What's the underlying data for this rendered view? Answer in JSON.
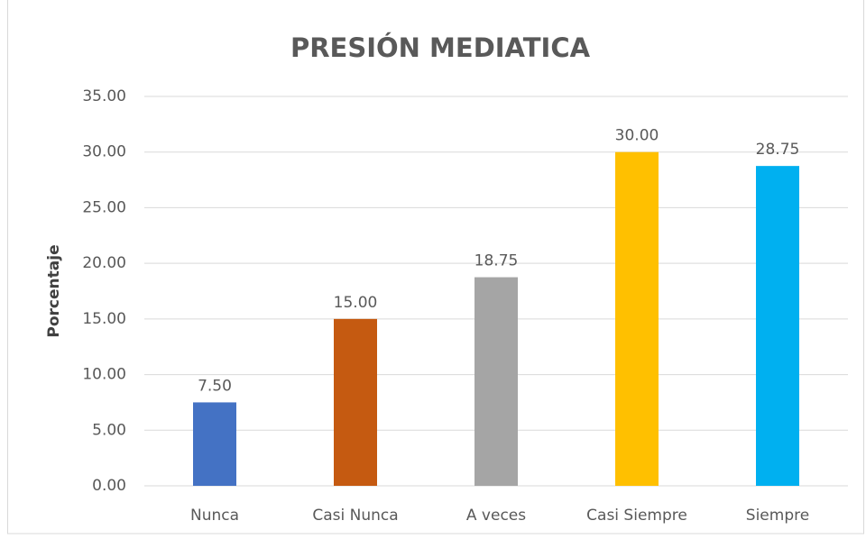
{
  "chart_data": {
    "type": "bar",
    "title": "PRESIÓN MEDIATICA",
    "y_label": "Porcentaje",
    "categories": [
      "Nunca",
      "Casi Nunca",
      "A veces",
      "Casi Siempre",
      "Siempre"
    ],
    "values": [
      7.5,
      15,
      18.75,
      30,
      28.75
    ],
    "value_labels": [
      "7.50",
      "15.00",
      "18.75",
      "30.00",
      "28.75"
    ],
    "colors": [
      "#4472c4",
      "#c55a11",
      "#a5a5a5",
      "#ffc000",
      "#00b0f0"
    ],
    "ylim": [
      0,
      35
    ],
    "yticks": [
      {
        "value": 0,
        "label": "0.00"
      },
      {
        "value": 5,
        "label": "5.00"
      },
      {
        "value": 10,
        "label": "10.00"
      },
      {
        "value": 15,
        "label": "15.00"
      },
      {
        "value": 20,
        "label": "20.00"
      },
      {
        "value": 25,
        "label": "25.00"
      },
      {
        "value": 30,
        "label": "30.00"
      },
      {
        "value": 35,
        "label": "35.00"
      }
    ],
    "grid": true
  }
}
